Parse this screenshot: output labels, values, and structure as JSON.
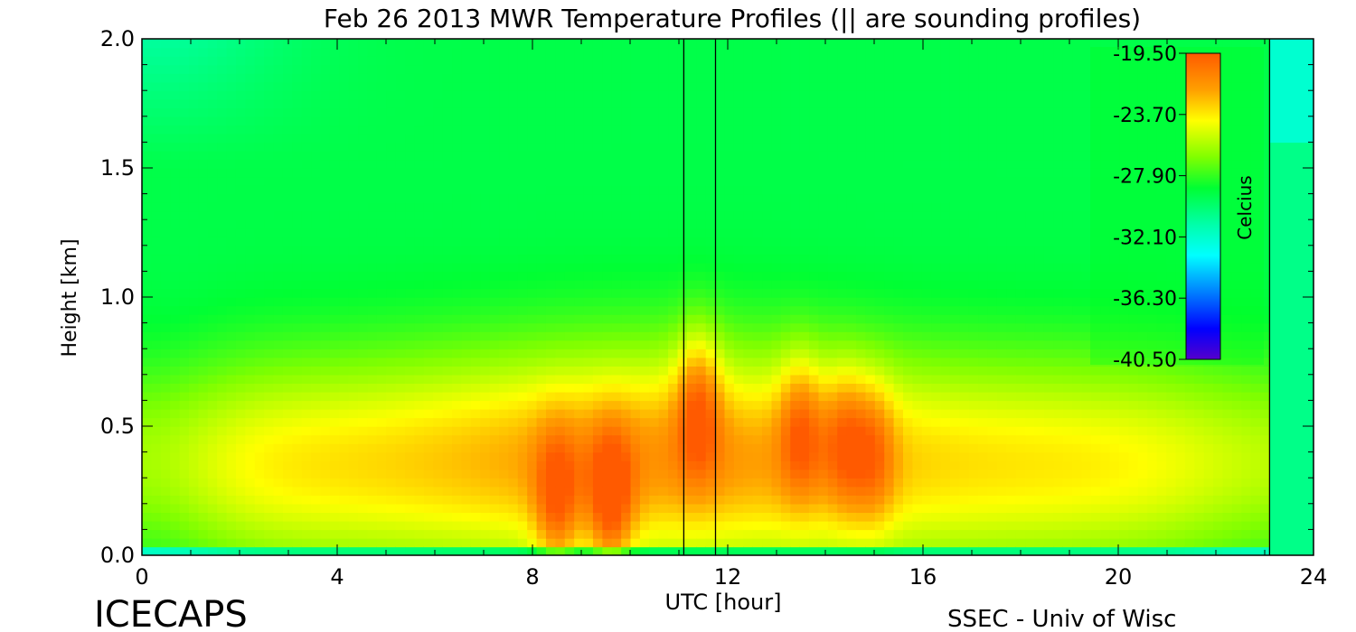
{
  "chart_data": {
    "type": "heatmap",
    "title": "Feb 26 2013 MWR Temperature Profiles (|| are sounding profiles)",
    "xlabel": "UTC [hour]",
    "ylabel": "Height [km]",
    "xlim": [
      0,
      24
    ],
    "ylim": [
      0,
      2.0
    ],
    "x_ticks": [
      0,
      4,
      8,
      12,
      16,
      20,
      24
    ],
    "x_tick_labels": [
      "0",
      "4",
      "8",
      "12",
      "16",
      "20",
      "24"
    ],
    "y_ticks": [
      0,
      0.5,
      1.0,
      1.5,
      2.0
    ],
    "y_tick_labels": [
      "0.0",
      "0.5",
      "1.0",
      "1.5",
      "2.0"
    ],
    "colorbar": {
      "label": "Celcius",
      "ticks": [
        -19.5,
        -23.7,
        -27.9,
        -32.1,
        -36.3,
        -40.5
      ],
      "tick_labels": [
        "-19.50",
        "-23.70",
        "-27.90",
        "-32.10",
        "-36.30",
        "-40.50"
      ],
      "range": [
        -40.5,
        -19.5
      ]
    },
    "data_coverage_end_hour": 23.1,
    "sounding_profile_hours": [
      11.1,
      11.75,
      23.1
    ],
    "warm_features": [
      {
        "x_hour": 8.5,
        "height_km": 0.2,
        "temp_c": -20.5
      },
      {
        "x_hour": 9.6,
        "height_km": 0.2,
        "temp_c": -19.8
      },
      {
        "x_hour": 11.4,
        "height_km": 0.6,
        "temp_c": -20.5
      },
      {
        "x_hour": 13.5,
        "height_km": 0.5,
        "temp_c": -21.0
      },
      {
        "x_hour": 14.4,
        "height_km": 0.45,
        "temp_c": -21.2
      },
      {
        "x_hour": 15.0,
        "height_km": 0.4,
        "temp_c": -21.5
      }
    ]
  },
  "footer": {
    "left": "ICECAPS",
    "right": "SSEC - Univ of Wisc"
  }
}
